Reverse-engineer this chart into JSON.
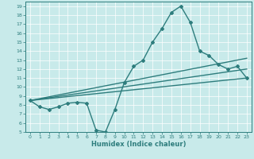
{
  "xlabel": "Humidex (Indice chaleur)",
  "xlim": [
    -0.5,
    23.5
  ],
  "ylim": [
    5,
    19.5
  ],
  "xticks": [
    0,
    1,
    2,
    3,
    4,
    5,
    6,
    7,
    8,
    9,
    10,
    11,
    12,
    13,
    14,
    15,
    16,
    17,
    18,
    19,
    20,
    21,
    22,
    23
  ],
  "yticks": [
    5,
    6,
    7,
    8,
    9,
    10,
    11,
    12,
    13,
    14,
    15,
    16,
    17,
    18,
    19
  ],
  "background_color": "#c8eaea",
  "line_color": "#2e7d7d",
  "line_width": 1.0,
  "marker": "D",
  "marker_size": 2.0,
  "series": [
    {
      "x": [
        0,
        1,
        2,
        3,
        4,
        5,
        6,
        7,
        8,
        9,
        10,
        11,
        12,
        13,
        14,
        15,
        16,
        17,
        18,
        19,
        20,
        21,
        22,
        23
      ],
      "y": [
        8.5,
        7.8,
        7.5,
        7.8,
        8.2,
        8.3,
        8.2,
        5.2,
        5.0,
        7.5,
        10.5,
        12.3,
        13.0,
        15.0,
        16.5,
        18.3,
        19.0,
        17.2,
        14.0,
        13.5,
        12.5,
        12.0,
        12.3,
        11.0
      ],
      "has_markers": true
    },
    {
      "x": [
        0,
        23
      ],
      "y": [
        8.5,
        13.2
      ],
      "has_markers": false
    },
    {
      "x": [
        0,
        23
      ],
      "y": [
        8.5,
        12.0
      ],
      "has_markers": false
    },
    {
      "x": [
        0,
        23
      ],
      "y": [
        8.5,
        11.0
      ],
      "has_markers": false
    }
  ]
}
